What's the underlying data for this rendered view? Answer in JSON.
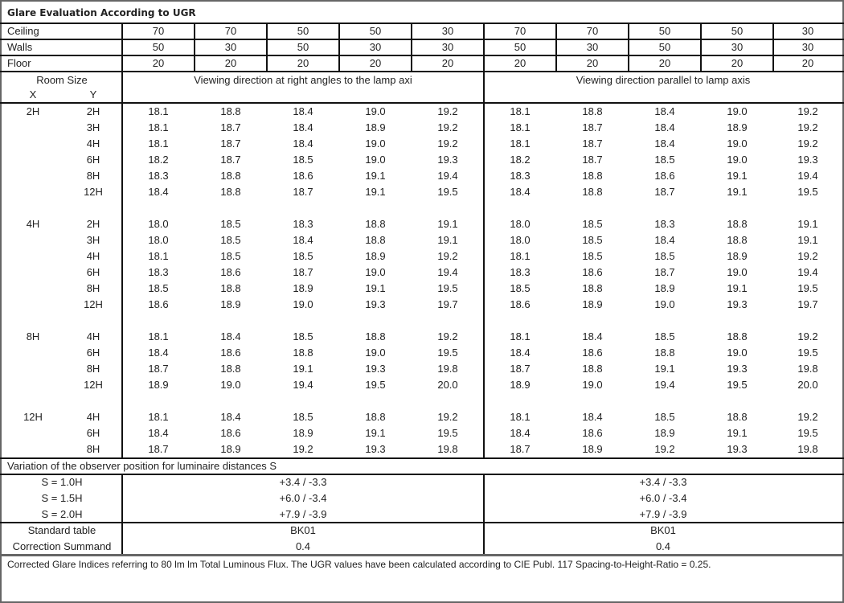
{
  "title": "Glare Evaluation According to UGR",
  "reflectances": [
    {
      "label": "Ceiling",
      "values": [
        "70",
        "70",
        "50",
        "50",
        "30",
        "70",
        "70",
        "50",
        "50",
        "30"
      ]
    },
    {
      "label": "Walls",
      "values": [
        "50",
        "30",
        "50",
        "30",
        "30",
        "50",
        "30",
        "50",
        "30",
        "30"
      ]
    },
    {
      "label": "Floor",
      "values": [
        "20",
        "20",
        "20",
        "20",
        "20",
        "20",
        "20",
        "20",
        "20",
        "20"
      ]
    }
  ],
  "header": {
    "room_size": "Room Size",
    "x": "X",
    "y": "Y",
    "perpendicular": "Viewing direction at right angles to the lamp axi",
    "parallel": "Viewing direction parallel to lamp axis"
  },
  "groups": [
    {
      "x": "2H",
      "rows": [
        {
          "y": "2H",
          "perpendicular": [
            "18.1",
            "18.8",
            "18.4",
            "19.0",
            "19.2"
          ],
          "parallel": [
            "18.1",
            "18.8",
            "18.4",
            "19.0",
            "19.2"
          ]
        },
        {
          "y": "3H",
          "perpendicular": [
            "18.1",
            "18.7",
            "18.4",
            "18.9",
            "19.2"
          ],
          "parallel": [
            "18.1",
            "18.7",
            "18.4",
            "18.9",
            "19.2"
          ]
        },
        {
          "y": "4H",
          "perpendicular": [
            "18.1",
            "18.7",
            "18.4",
            "19.0",
            "19.2"
          ],
          "parallel": [
            "18.1",
            "18.7",
            "18.4",
            "19.0",
            "19.2"
          ]
        },
        {
          "y": "6H",
          "perpendicular": [
            "18.2",
            "18.7",
            "18.5",
            "19.0",
            "19.3"
          ],
          "parallel": [
            "18.2",
            "18.7",
            "18.5",
            "19.0",
            "19.3"
          ]
        },
        {
          "y": "8H",
          "perpendicular": [
            "18.3",
            "18.8",
            "18.6",
            "19.1",
            "19.4"
          ],
          "parallel": [
            "18.3",
            "18.8",
            "18.6",
            "19.1",
            "19.4"
          ]
        },
        {
          "y": "12H",
          "perpendicular": [
            "18.4",
            "18.8",
            "18.7",
            "19.1",
            "19.5"
          ],
          "parallel": [
            "18.4",
            "18.8",
            "18.7",
            "19.1",
            "19.5"
          ]
        }
      ]
    },
    {
      "x": "4H",
      "rows": [
        {
          "y": "2H",
          "perpendicular": [
            "18.0",
            "18.5",
            "18.3",
            "18.8",
            "19.1"
          ],
          "parallel": [
            "18.0",
            "18.5",
            "18.3",
            "18.8",
            "19.1"
          ]
        },
        {
          "y": "3H",
          "perpendicular": [
            "18.0",
            "18.5",
            "18.4",
            "18.8",
            "19.1"
          ],
          "parallel": [
            "18.0",
            "18.5",
            "18.4",
            "18.8",
            "19.1"
          ]
        },
        {
          "y": "4H",
          "perpendicular": [
            "18.1",
            "18.5",
            "18.5",
            "18.9",
            "19.2"
          ],
          "parallel": [
            "18.1",
            "18.5",
            "18.5",
            "18.9",
            "19.2"
          ]
        },
        {
          "y": "6H",
          "perpendicular": [
            "18.3",
            "18.6",
            "18.7",
            "19.0",
            "19.4"
          ],
          "parallel": [
            "18.3",
            "18.6",
            "18.7",
            "19.0",
            "19.4"
          ]
        },
        {
          "y": "8H",
          "perpendicular": [
            "18.5",
            "18.8",
            "18.9",
            "19.1",
            "19.5"
          ],
          "parallel": [
            "18.5",
            "18.8",
            "18.9",
            "19.1",
            "19.5"
          ]
        },
        {
          "y": "12H",
          "perpendicular": [
            "18.6",
            "18.9",
            "19.0",
            "19.3",
            "19.7"
          ],
          "parallel": [
            "18.6",
            "18.9",
            "19.0",
            "19.3",
            "19.7"
          ]
        }
      ]
    },
    {
      "x": "8H",
      "rows": [
        {
          "y": "4H",
          "perpendicular": [
            "18.1",
            "18.4",
            "18.5",
            "18.8",
            "19.2"
          ],
          "parallel": [
            "18.1",
            "18.4",
            "18.5",
            "18.8",
            "19.2"
          ]
        },
        {
          "y": "6H",
          "perpendicular": [
            "18.4",
            "18.6",
            "18.8",
            "19.0",
            "19.5"
          ],
          "parallel": [
            "18.4",
            "18.6",
            "18.8",
            "19.0",
            "19.5"
          ]
        },
        {
          "y": "8H",
          "perpendicular": [
            "18.7",
            "18.8",
            "19.1",
            "19.3",
            "19.8"
          ],
          "parallel": [
            "18.7",
            "18.8",
            "19.1",
            "19.3",
            "19.8"
          ]
        },
        {
          "y": "12H",
          "perpendicular": [
            "18.9",
            "19.0",
            "19.4",
            "19.5",
            "20.0"
          ],
          "parallel": [
            "18.9",
            "19.0",
            "19.4",
            "19.5",
            "20.0"
          ]
        }
      ]
    },
    {
      "x": "12H",
      "rows": [
        {
          "y": "4H",
          "perpendicular": [
            "18.1",
            "18.4",
            "18.5",
            "18.8",
            "19.2"
          ],
          "parallel": [
            "18.1",
            "18.4",
            "18.5",
            "18.8",
            "19.2"
          ]
        },
        {
          "y": "6H",
          "perpendicular": [
            "18.4",
            "18.6",
            "18.9",
            "19.1",
            "19.5"
          ],
          "parallel": [
            "18.4",
            "18.6",
            "18.9",
            "19.1",
            "19.5"
          ]
        },
        {
          "y": "8H",
          "perpendicular": [
            "18.7",
            "18.9",
            "19.2",
            "19.3",
            "19.8"
          ],
          "parallel": [
            "18.7",
            "18.9",
            "19.2",
            "19.3",
            "19.8"
          ]
        }
      ]
    }
  ],
  "variation": {
    "title": "Variation of the observer position for luminaire distances S",
    "rows": [
      {
        "label": "S = 1.0H",
        "perpendicular": "+3.4 / -3.3",
        "parallel": "+3.4 / -3.3"
      },
      {
        "label": "S = 1.5H",
        "perpendicular": "+6.0 / -3.4",
        "parallel": "+6.0 / -3.4"
      },
      {
        "label": "S = 2.0H",
        "perpendicular": "+7.9 / -3.9",
        "parallel": "+7.9 / -3.9"
      }
    ]
  },
  "standard": [
    {
      "label": "Standard table",
      "perpendicular": "BK01",
      "parallel": "BK01"
    },
    {
      "label": "Correction Summand",
      "perpendicular": "0.4",
      "parallel": "0.4"
    }
  ],
  "footer": "Corrected Glare Indices referring to 80 lm lm Total Luminous Flux. The UGR values have been calculated according to CIE Publ. 117    Spacing-to-Height-Ratio = 0.25."
}
